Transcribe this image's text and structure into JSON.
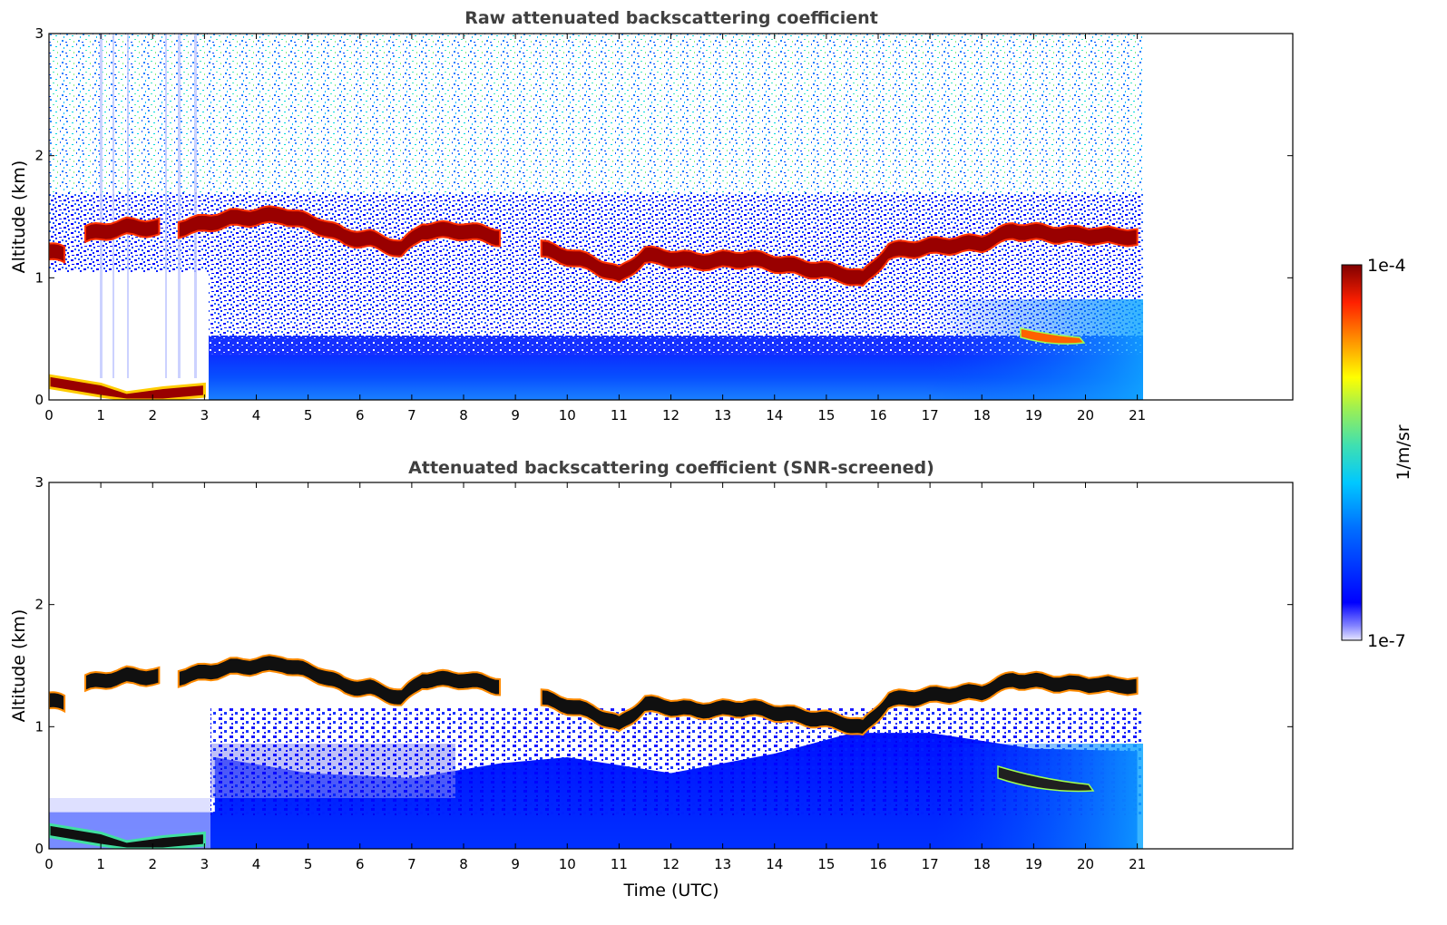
{
  "chart_data": [
    {
      "type": "heatmap",
      "title": "Raw attenuated backscattering coefficient",
      "xlabel": "",
      "ylabel": "Altitude (km)",
      "xlim": [
        0,
        24
      ],
      "ylim": [
        0,
        3
      ],
      "x_data_end": 21.1,
      "xticks": [
        "0",
        "1",
        "2",
        "3",
        "4",
        "5",
        "6",
        "7",
        "8",
        "9",
        "10",
        "11",
        "12",
        "13",
        "14",
        "15",
        "16",
        "17",
        "18",
        "19",
        "20",
        "21"
      ],
      "yticks": [
        "0",
        "1",
        "2",
        "3"
      ],
      "layer_top_km": [
        [
          0.0,
          1.28
        ],
        [
          0.3,
          1.25
        ],
        [
          0.7,
          1.42
        ],
        [
          1.5,
          1.48
        ],
        [
          2.5,
          1.47
        ],
        [
          3.5,
          1.55
        ],
        [
          4.5,
          1.58
        ],
        [
          5.3,
          1.48
        ],
        [
          5.7,
          1.4
        ],
        [
          6.2,
          1.38
        ],
        [
          6.8,
          1.3
        ],
        [
          7.2,
          1.45
        ],
        [
          8.0,
          1.45
        ],
        [
          8.7,
          1.4
        ],
        [
          9.5,
          1.3
        ],
        [
          10.5,
          1.18
        ],
        [
          11.0,
          1.08
        ],
        [
          11.5,
          1.25
        ],
        [
          12.5,
          1.2
        ],
        [
          13.5,
          1.22
        ],
        [
          14.5,
          1.15
        ],
        [
          15.3,
          1.1
        ],
        [
          15.7,
          1.05
        ],
        [
          16.2,
          1.28
        ],
        [
          17.0,
          1.32
        ],
        [
          18.0,
          1.35
        ],
        [
          18.6,
          1.45
        ],
        [
          19.5,
          1.42
        ],
        [
          21.0,
          1.4
        ]
      ],
      "gaps_h": [
        [
          0.3,
          0.7
        ],
        [
          2.2,
          2.45
        ],
        [
          8.75,
          9.5
        ]
      ],
      "surface_layer_km": [
        [
          0.0,
          0.2
        ],
        [
          1.0,
          0.13
        ],
        [
          1.5,
          0.06
        ],
        [
          2.2,
          0.1
        ],
        [
          3.0,
          0.13
        ]
      ],
      "colorbar": {
        "min_label": "1e-7",
        "max_label": "1e-4",
        "label": "1/m/sr",
        "scale": "log"
      }
    },
    {
      "type": "heatmap",
      "title": "Attenuated backscattering coefficient (SNR-screened)",
      "xlabel": "Time (UTC)",
      "ylabel": "Altitude (km)",
      "xlim": [
        0,
        24
      ],
      "ylim": [
        0,
        3
      ],
      "x_data_end": 21.1,
      "xticks": [
        "0",
        "1",
        "2",
        "3",
        "4",
        "5",
        "6",
        "7",
        "8",
        "9",
        "10",
        "11",
        "12",
        "13",
        "14",
        "15",
        "16",
        "17",
        "18",
        "19",
        "20",
        "21"
      ],
      "yticks": [
        "0",
        "1",
        "2",
        "3"
      ],
      "screened_top_km": [
        [
          3.2,
          0.75
        ],
        [
          5.0,
          0.62
        ],
        [
          7.0,
          0.58
        ],
        [
          8.7,
          0.7
        ],
        [
          10.0,
          0.75
        ],
        [
          12.0,
          0.62
        ],
        [
          14.0,
          0.78
        ],
        [
          15.5,
          0.95
        ],
        [
          17.0,
          0.95
        ],
        [
          19.0,
          0.82
        ],
        [
          21.0,
          0.8
        ]
      ],
      "colorbar": {
        "min_label": "1e-7",
        "max_label": "1e-4",
        "label": "1/m/sr",
        "scale": "log"
      }
    }
  ]
}
